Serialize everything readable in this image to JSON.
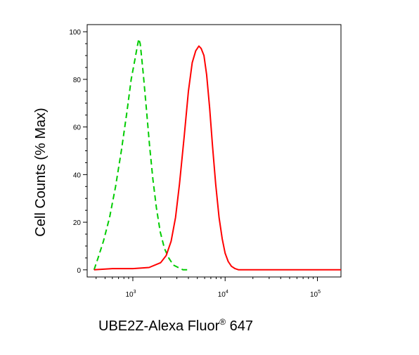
{
  "chart_data": {
    "type": "line",
    "title": "",
    "xlabel": "UBE2Z-Alexa Fluor",
    "xlabel_sup": "®",
    "xlabel_suffix": " 647",
    "ylabel": "Cell Counts (% Max)",
    "x_scale": "log",
    "xlim": [
      320,
      180000
    ],
    "ylim": [
      -3,
      103
    ],
    "y_ticks": [
      0,
      20,
      40,
      60,
      80,
      100
    ],
    "x_ticks": [
      {
        "value": 1000,
        "base": "10",
        "exp": "3"
      },
      {
        "value": 10000,
        "base": "10",
        "exp": "4"
      },
      {
        "value": 100000,
        "base": "10",
        "exp": "5"
      }
    ],
    "grid": false,
    "series": [
      {
        "color": "#00cc00",
        "style": "dashed",
        "x": [
          380,
          420,
          480,
          560,
          650,
          750,
          860,
          960,
          1050,
          1120,
          1160,
          1200,
          1240,
          1300,
          1400,
          1520,
          1650,
          1800,
          1980,
          2200,
          2450,
          2750,
          3100,
          3500,
          4000
        ],
        "y": [
          0,
          5,
          12,
          22,
          35,
          50,
          66,
          80,
          88,
          94,
          97,
          95,
          90,
          82,
          68,
          52,
          38,
          26,
          16,
          9,
          5,
          2,
          1,
          0,
          0
        ]
      },
      {
        "color": "#ff0000",
        "style": "solid",
        "x": [
          380,
          600,
          1000,
          1500,
          2000,
          2300,
          2600,
          2900,
          3200,
          3600,
          4000,
          4400,
          4800,
          5200,
          5500,
          5900,
          6300,
          6800,
          7300,
          7900,
          8600,
          9300,
          10000,
          10800,
          11700,
          12800,
          14000,
          16000,
          20000,
          50000,
          180000
        ],
        "y": [
          0,
          0.5,
          0.5,
          1,
          3,
          6,
          12,
          22,
          36,
          56,
          75,
          87,
          92,
          94,
          93,
          90,
          82,
          68,
          52,
          36,
          22,
          13,
          7,
          3.5,
          1.5,
          0.5,
          0,
          0,
          0,
          0,
          0
        ]
      }
    ]
  }
}
